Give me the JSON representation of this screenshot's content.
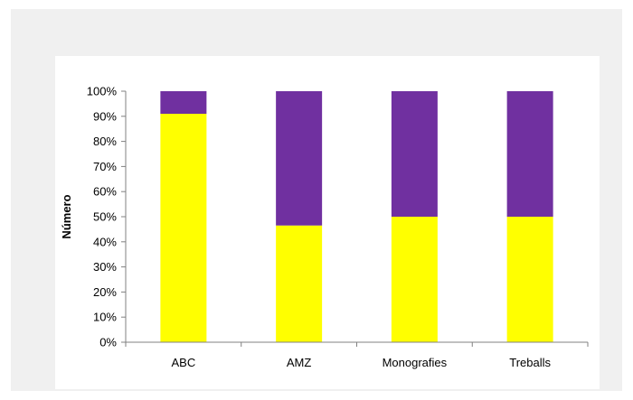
{
  "chart_data": {
    "type": "bar",
    "stacked": true,
    "percent_stacked": true,
    "title": "",
    "xlabel": "",
    "ylabel": "Número",
    "categories": [
      "ABC",
      "AMZ",
      "Monografies",
      "Treballs"
    ],
    "series": [
      {
        "values": [
          91,
          46.5,
          50,
          50
        ],
        "color": "#ffff00"
      },
      {
        "values": [
          9,
          53.5,
          50,
          50
        ],
        "color": "#7030a0"
      }
    ],
    "ylim": [
      0,
      100
    ],
    "yticks": [
      "0%",
      "10%",
      "20%",
      "30%",
      "40%",
      "50%",
      "60%",
      "70%",
      "80%",
      "90%",
      "100%"
    ],
    "grid": false,
    "legend": "none"
  },
  "colors": {
    "background": "#f0f0f0",
    "panel": "#ffffff",
    "axis": "#808080"
  }
}
